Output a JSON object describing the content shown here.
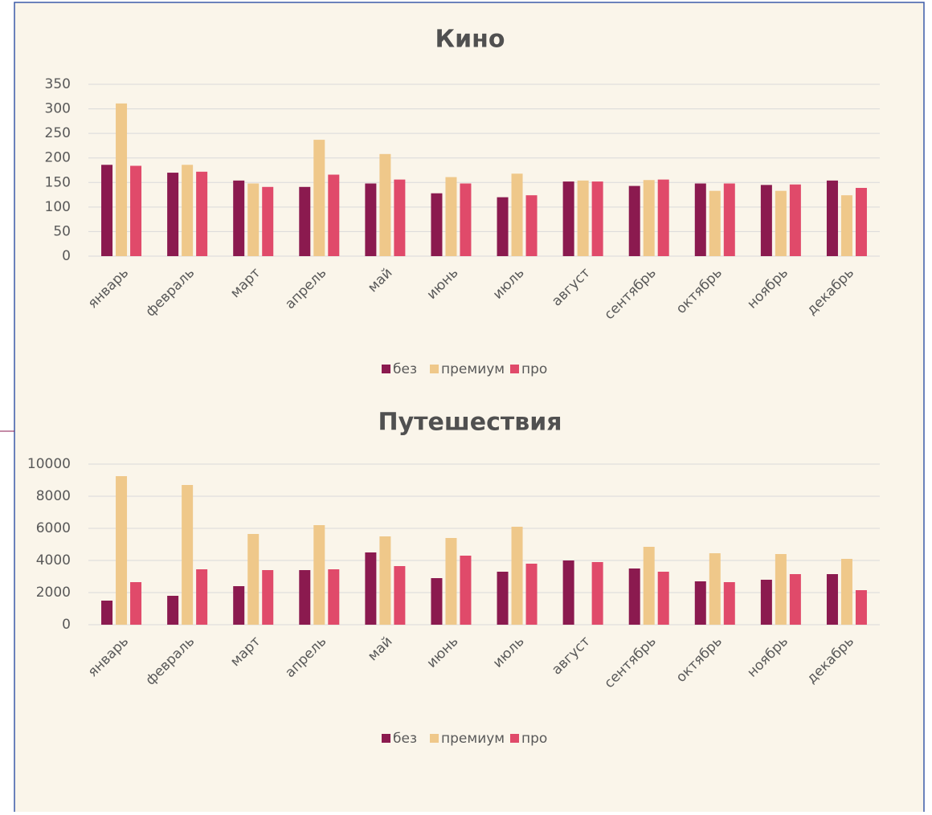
{
  "chart_data": [
    {
      "type": "bar",
      "title": "Кино",
      "categories": [
        "январь",
        "февраль",
        "март",
        "апрель",
        "май",
        "июнь",
        "июль",
        "август",
        "сентябрь",
        "октябрь",
        "ноябрь",
        "декабрь"
      ],
      "series": [
        {
          "name": "без",
          "color": "#8b1a4f",
          "values": [
            186,
            170,
            154,
            141,
            148,
            128,
            120,
            152,
            143,
            148,
            145,
            154
          ]
        },
        {
          "name": "премиум",
          "color": "#efc88a",
          "values": [
            311,
            186,
            148,
            237,
            208,
            161,
            168,
            154,
            155,
            133,
            133,
            124
          ]
        },
        {
          "name": "про",
          "color": "#e04a6a",
          "values": [
            184,
            172,
            141,
            166,
            156,
            148,
            124,
            152,
            156,
            148,
            146,
            139
          ]
        }
      ],
      "ylim": [
        0,
        350
      ],
      "yticks": [
        0,
        50,
        100,
        150,
        200,
        250,
        300,
        350
      ],
      "grid": true,
      "legend": "bottom"
    },
    {
      "type": "bar",
      "title": "Путешествия",
      "categories": [
        "январь",
        "февраль",
        "март",
        "апрель",
        "май",
        "июнь",
        "июль",
        "август",
        "сентябрь",
        "октябрь",
        "ноябрь",
        "декабрь"
      ],
      "series": [
        {
          "name": "без",
          "color": "#8b1a4f",
          "values": [
            1500,
            1800,
            2400,
            3400,
            4500,
            2900,
            3300,
            4000,
            3500,
            2700,
            2800,
            3150
          ]
        },
        {
          "name": "премиум",
          "color": "#efc88a",
          "values": [
            9250,
            8700,
            5650,
            6200,
            5500,
            5400,
            6100,
            null,
            4850,
            4450,
            4400,
            4100
          ]
        },
        {
          "name": "про",
          "color": "#e04a6a",
          "values": [
            2650,
            3450,
            3400,
            3450,
            3650,
            4300,
            3800,
            3900,
            3300,
            2650,
            3150,
            2150
          ]
        }
      ],
      "ylim": [
        0,
        10000
      ],
      "yticks": [
        0,
        2000,
        4000,
        6000,
        8000,
        10000
      ],
      "grid": true,
      "legend": "bottom"
    }
  ]
}
